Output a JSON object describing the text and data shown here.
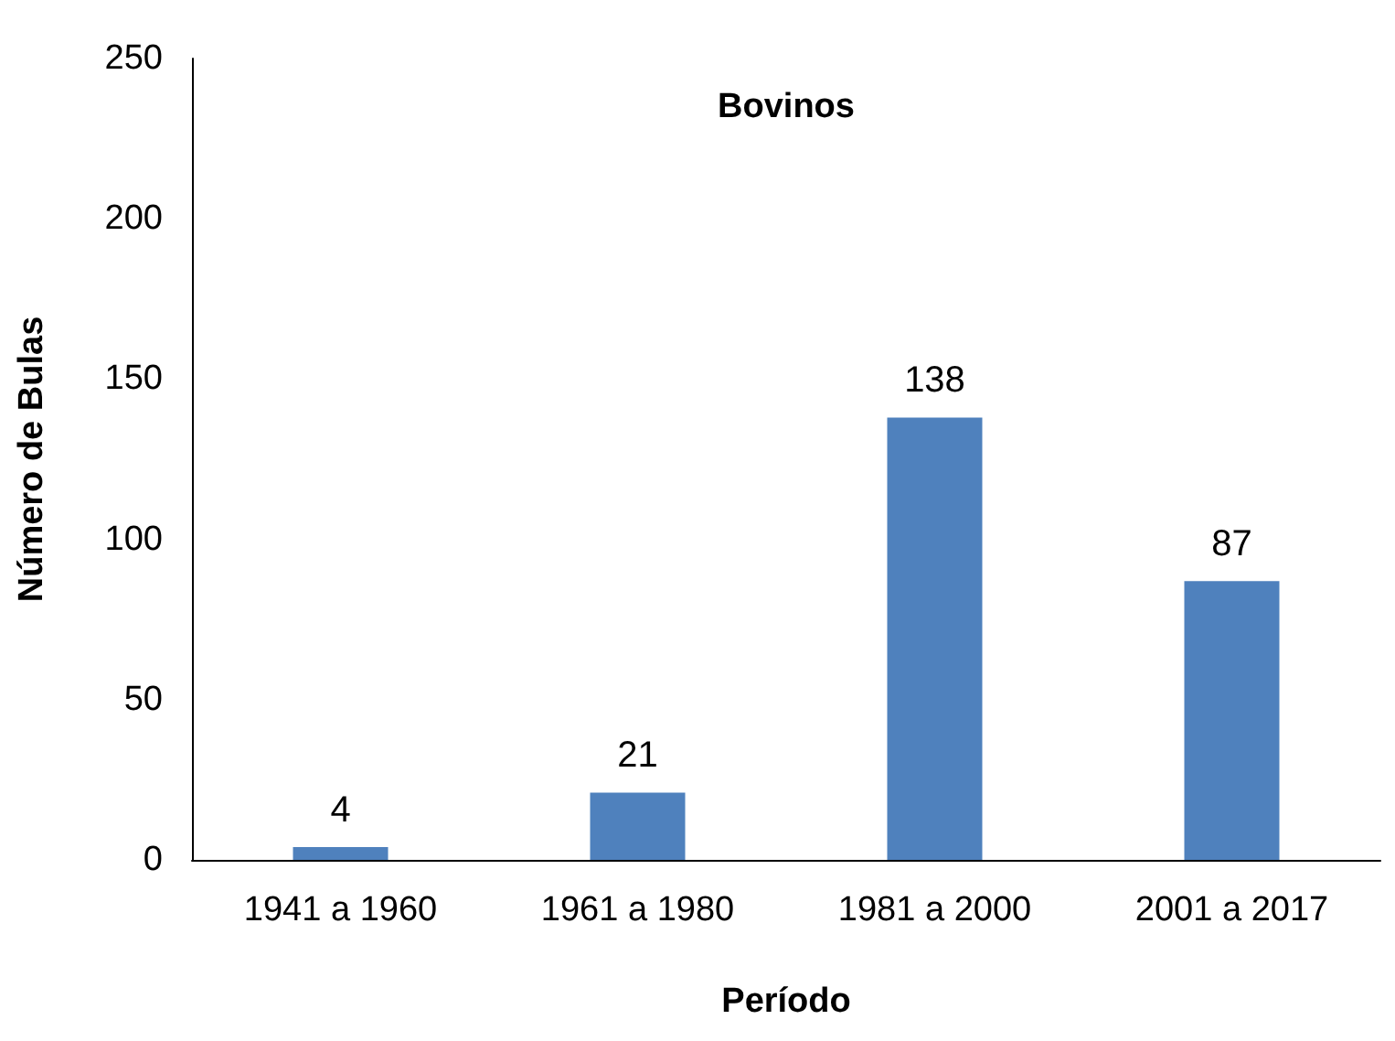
{
  "chart_data": {
    "type": "bar",
    "title": "Bovinos",
    "xlabel": "Período",
    "ylabel": "Número de Bulas",
    "categories": [
      "1941 a 1960",
      "1961 a 1980",
      "1981 a 2000",
      "2001 a 2017"
    ],
    "values": [
      4,
      21,
      138,
      87
    ],
    "color": "#4f81bd",
    "data_labels": true,
    "ylim": [
      0,
      250
    ],
    "yticks": [
      0,
      50,
      100,
      150,
      200,
      250
    ]
  }
}
